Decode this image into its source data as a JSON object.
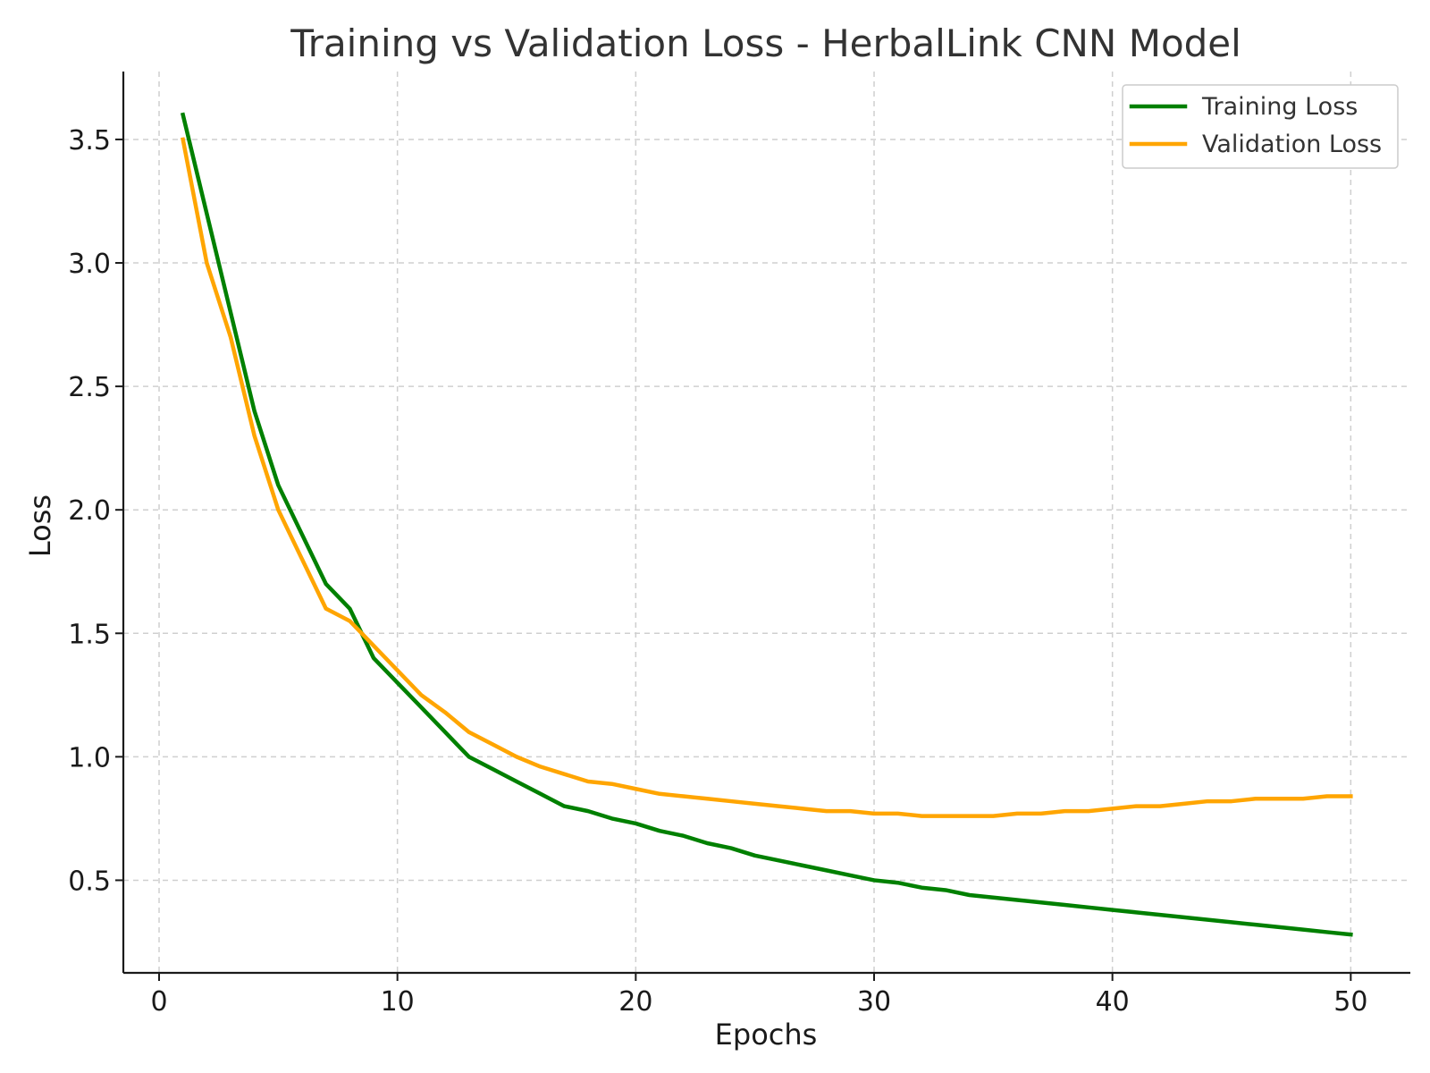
{
  "chart_data": {
    "type": "line",
    "title": "Training vs Validation Loss - HerbalLink CNN Model",
    "xlabel": "Epochs",
    "ylabel": "Loss",
    "xlim": [
      -1.5,
      52.5
    ],
    "ylim": [
      0.125,
      3.775
    ],
    "xticks": [
      0,
      10,
      20,
      30,
      40,
      50
    ],
    "yticks": [
      0.5,
      1.0,
      1.5,
      2.0,
      2.5,
      3.0,
      3.5
    ],
    "xtick_labels": [
      "0",
      "10",
      "20",
      "30",
      "40",
      "50"
    ],
    "ytick_labels": [
      "0.5",
      "1.0",
      "1.5",
      "2.0",
      "2.5",
      "3.0",
      "3.5"
    ],
    "grid": true,
    "legend_position": "top-right",
    "x": [
      1,
      2,
      3,
      4,
      5,
      6,
      7,
      8,
      9,
      10,
      11,
      12,
      13,
      14,
      15,
      16,
      17,
      18,
      19,
      20,
      21,
      22,
      23,
      24,
      25,
      26,
      27,
      28,
      29,
      30,
      31,
      32,
      33,
      34,
      35,
      36,
      37,
      38,
      39,
      40,
      41,
      42,
      43,
      44,
      45,
      46,
      47,
      48,
      49,
      50
    ],
    "series": [
      {
        "name": "Training Loss",
        "color": "#008000",
        "values": [
          3.6,
          3.2,
          2.8,
          2.4,
          2.1,
          1.9,
          1.7,
          1.6,
          1.4,
          1.3,
          1.2,
          1.1,
          1.0,
          0.95,
          0.9,
          0.85,
          0.8,
          0.78,
          0.75,
          0.73,
          0.7,
          0.68,
          0.65,
          0.63,
          0.6,
          0.58,
          0.56,
          0.54,
          0.52,
          0.5,
          0.49,
          0.47,
          0.46,
          0.44,
          0.43,
          0.42,
          0.41,
          0.4,
          0.39,
          0.38,
          0.37,
          0.36,
          0.35,
          0.34,
          0.33,
          0.32,
          0.31,
          0.3,
          0.29,
          0.28
        ]
      },
      {
        "name": "Validation Loss",
        "color": "#FFA500",
        "values": [
          3.5,
          3.0,
          2.7,
          2.3,
          2.0,
          1.8,
          1.6,
          1.55,
          1.45,
          1.35,
          1.25,
          1.18,
          1.1,
          1.05,
          1.0,
          0.96,
          0.93,
          0.9,
          0.89,
          0.87,
          0.85,
          0.84,
          0.83,
          0.82,
          0.81,
          0.8,
          0.79,
          0.78,
          0.78,
          0.77,
          0.77,
          0.76,
          0.76,
          0.76,
          0.76,
          0.77,
          0.77,
          0.78,
          0.78,
          0.79,
          0.8,
          0.8,
          0.81,
          0.82,
          0.82,
          0.83,
          0.83,
          0.83,
          0.84,
          0.84
        ]
      }
    ]
  }
}
